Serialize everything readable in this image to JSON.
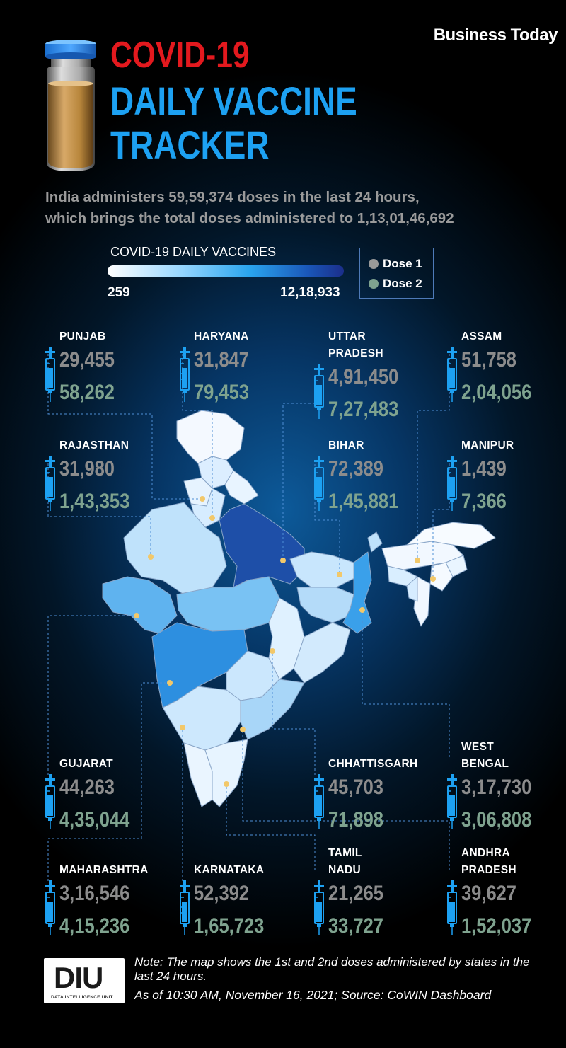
{
  "brand": "Business Today",
  "title_line1": "COVID-19",
  "title_line2": "DAILY VACCINE",
  "title_line3": "TRACKER",
  "subtitle_line1": "India administers 59,59,374 doses in the last 24 hours,",
  "subtitle_line2": "which brings the total doses administered to 1,13,01,46,692",
  "legend": {
    "title": "COVID-19 DAILY VACCINES",
    "min": "259",
    "max": "12,18,933",
    "dose1_label": "Dose 1",
    "dose2_label": "Dose 2",
    "dose1_color": "#9a9a9a",
    "dose2_color": "#7fa38f"
  },
  "states": [
    {
      "name_line1": "PUNJAB",
      "name_line2": "",
      "dose1": "29,455",
      "dose2": "58,262"
    },
    {
      "name_line1": "HARYANA",
      "name_line2": "",
      "dose1": "31,847",
      "dose2": "79,453"
    },
    {
      "name_line1": "UTTAR",
      "name_line2": "PRADESH",
      "dose1": "4,91,450",
      "dose2": "7,27,483"
    },
    {
      "name_line1": "ASSAM",
      "name_line2": "",
      "dose1": "51,758",
      "dose2": "2,04,056"
    },
    {
      "name_line1": "RAJASTHAN",
      "name_line2": "",
      "dose1": "31,980",
      "dose2": "1,43,353"
    },
    {
      "name_line1": "BIHAR",
      "name_line2": "",
      "dose1": "72,389",
      "dose2": "1,45,881"
    },
    {
      "name_line1": "MANIPUR",
      "name_line2": "",
      "dose1": "1,439",
      "dose2": "7,366"
    },
    {
      "name_line1": "GUJARAT",
      "name_line2": "",
      "dose1": "44,263",
      "dose2": "4,35,044"
    },
    {
      "name_line1": "CHHATTISGARH",
      "name_line2": "",
      "dose1": "45,703",
      "dose2": "71,898"
    },
    {
      "name_line1": "WEST",
      "name_line2": "BENGAL",
      "dose1": "3,17,730",
      "dose2": "3,06,808"
    },
    {
      "name_line1": "MAHARASHTRA",
      "name_line2": "",
      "dose1": "3,16,546",
      "dose2": "4,15,236"
    },
    {
      "name_line1": "KARNATAKA",
      "name_line2": "",
      "dose1": "52,392",
      "dose2": "1,65,723"
    },
    {
      "name_line1": "TAMIL",
      "name_line2": "NADU",
      "dose1": "21,265",
      "dose2": "33,727"
    },
    {
      "name_line1": "ANDHRA",
      "name_line2": "PRADESH",
      "dose1": "39,627",
      "dose2": "1,52,037"
    }
  ],
  "footer": {
    "logo_text": "DIU",
    "logo_sub": "DATA INTELLIGENCE UNIT",
    "note": "Note: The map shows the 1st and 2nd doses administered by states in the last 24 hours.",
    "source": "As of 10:30 AM, November 16, 2021; Source: CoWIN Dashboard"
  }
}
